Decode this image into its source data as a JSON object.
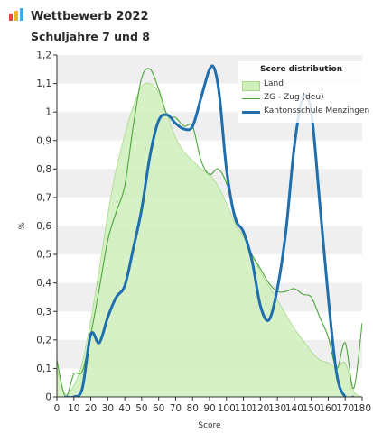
{
  "header": {
    "title": "Wettbewerb 2022",
    "subtitle": "Schuljahre 7 und 8",
    "logo_icon": "bar-chart-icon",
    "logo_colors": [
      "#e8473f",
      "#f2b51c",
      "#3db1e3"
    ]
  },
  "chart_data": {
    "type": "area",
    "xlabel": "Score",
    "ylabel": "%",
    "xlim": [
      0,
      180
    ],
    "ylim": [
      0,
      1.2
    ],
    "x_ticks": [
      0,
      10,
      20,
      30,
      40,
      50,
      60,
      70,
      80,
      90,
      100,
      110,
      120,
      130,
      140,
      150,
      160,
      170,
      180
    ],
    "y_ticks": [
      0,
      0.1,
      0.2,
      0.3,
      0.4,
      0.5,
      0.6,
      0.7,
      0.8,
      0.9,
      1.0,
      1.1,
      1.2
    ],
    "y_tick_labels": [
      "0",
      "0,1",
      "0,2",
      "0,3",
      "0,4",
      "0,5",
      "0,6",
      "0,7",
      "0,8",
      "0,9",
      "1",
      "1,1",
      "1,2"
    ],
    "grid": "horizontal bands",
    "legend_title": "Score distribution",
    "legend_position": "top-right",
    "series": [
      {
        "name": "Land",
        "style": "area",
        "color": "#a8d98a",
        "fill": "#cfeebb",
        "x": [
          0,
          5,
          10,
          15,
          20,
          25,
          30,
          35,
          40,
          45,
          50,
          55,
          60,
          65,
          70,
          75,
          80,
          85,
          90,
          95,
          100,
          105,
          110,
          115,
          120,
          125,
          130,
          135,
          140,
          145,
          150,
          155,
          160,
          165,
          170,
          175,
          180
        ],
        "values": [
          0.1,
          0.01,
          0.04,
          0.12,
          0.27,
          0.45,
          0.64,
          0.8,
          0.92,
          1.02,
          1.09,
          1.1,
          1.07,
          0.99,
          0.91,
          0.86,
          0.83,
          0.8,
          0.78,
          0.74,
          0.68,
          0.61,
          0.56,
          0.5,
          0.44,
          0.39,
          0.34,
          0.29,
          0.24,
          0.2,
          0.16,
          0.13,
          0.12,
          0.1,
          0.12,
          0.02,
          0.0
        ]
      },
      {
        "name": "ZG - Zug (deu)",
        "style": "line",
        "color": "#4ca63a",
        "x": [
          0,
          5,
          10,
          15,
          20,
          25,
          30,
          35,
          40,
          45,
          50,
          55,
          60,
          65,
          70,
          75,
          80,
          85,
          90,
          95,
          100,
          105,
          110,
          115,
          120,
          125,
          130,
          135,
          140,
          145,
          150,
          155,
          160,
          165,
          170,
          175,
          180
        ],
        "values": [
          0.13,
          0.0,
          0.08,
          0.09,
          0.22,
          0.38,
          0.55,
          0.65,
          0.74,
          0.95,
          1.12,
          1.15,
          1.08,
          0.99,
          0.98,
          0.95,
          0.95,
          0.83,
          0.78,
          0.8,
          0.75,
          0.64,
          0.57,
          0.5,
          0.45,
          0.4,
          0.37,
          0.37,
          0.38,
          0.36,
          0.35,
          0.28,
          0.21,
          0.1,
          0.19,
          0.03,
          0.26
        ]
      },
      {
        "name": "Kantonsschule Menzingen",
        "style": "line-bold",
        "color": "#1f6fae",
        "x": [
          5,
          10,
          15,
          20,
          25,
          30,
          35,
          40,
          45,
          50,
          55,
          60,
          65,
          70,
          75,
          80,
          85,
          90,
          93,
          96,
          100,
          105,
          110,
          115,
          120,
          125,
          130,
          135,
          140,
          145,
          150,
          155,
          160,
          165,
          170,
          175
        ],
        "values": [
          0.0,
          0.0,
          0.03,
          0.22,
          0.19,
          0.28,
          0.35,
          0.39,
          0.52,
          0.66,
          0.85,
          0.97,
          0.99,
          0.96,
          0.94,
          0.95,
          1.05,
          1.15,
          1.15,
          1.05,
          0.8,
          0.63,
          0.58,
          0.48,
          0.32,
          0.27,
          0.38,
          0.58,
          0.88,
          1.05,
          1.0,
          0.68,
          0.35,
          0.08,
          0.0,
          0.0
        ]
      }
    ]
  }
}
